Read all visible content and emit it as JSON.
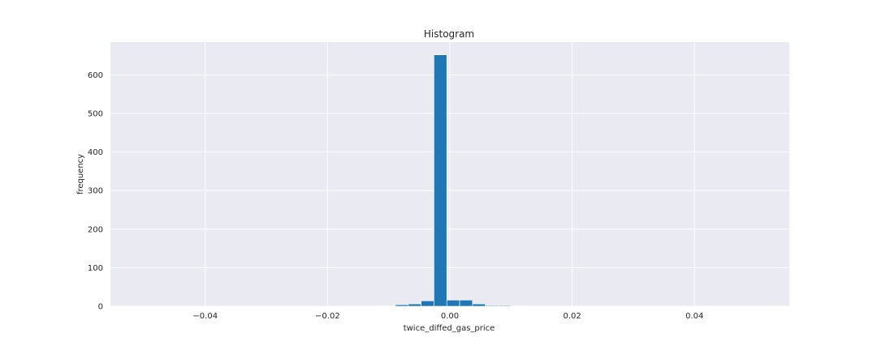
{
  "chart_data": {
    "type": "bar",
    "title": "Histogram",
    "xlabel": "twice_diffed_gas_price",
    "ylabel": "frequency",
    "xlim": [
      -0.0555,
      0.0555
    ],
    "ylim": [
      0,
      685
    ],
    "grid": true,
    "x_ticks": [
      -0.04,
      -0.02,
      0.0,
      0.02,
      0.04
    ],
    "x_tick_labels": [
      "−0.04",
      "−0.02",
      "0.00",
      "0.02",
      "0.04"
    ],
    "y_ticks": [
      0,
      100,
      200,
      300,
      400,
      500,
      600
    ],
    "y_tick_labels": [
      "0",
      "100",
      "200",
      "300",
      "400",
      "500",
      "600"
    ],
    "bins": [
      {
        "x0": -0.053,
        "x1": -0.0509,
        "count": 0.4
      },
      {
        "x0": -0.0509,
        "x1": -0.0488,
        "count": 0.4
      },
      {
        "x0": -0.0488,
        "x1": -0.0467,
        "count": 0.4
      },
      {
        "x0": -0.0467,
        "x1": -0.0446,
        "count": 0.4
      },
      {
        "x0": -0.0446,
        "x1": -0.0425,
        "count": 0.4
      },
      {
        "x0": -0.0425,
        "x1": -0.0404,
        "count": 0.4
      },
      {
        "x0": -0.0404,
        "x1": -0.0383,
        "count": 0.4
      },
      {
        "x0": -0.0383,
        "x1": -0.0362,
        "count": 0.4
      },
      {
        "x0": -0.0362,
        "x1": -0.0341,
        "count": 0.4
      },
      {
        "x0": -0.0341,
        "x1": -0.032,
        "count": 0.4
      },
      {
        "x0": -0.032,
        "x1": -0.0299,
        "count": 0.4
      },
      {
        "x0": -0.0299,
        "x1": -0.0278,
        "count": 0.4
      },
      {
        "x0": -0.0278,
        "x1": -0.0257,
        "count": 0.4
      },
      {
        "x0": -0.0257,
        "x1": -0.0236,
        "count": 0.4
      },
      {
        "x0": -0.0236,
        "x1": -0.0215,
        "count": 0.4
      },
      {
        "x0": -0.0215,
        "x1": -0.0194,
        "count": 0.4
      },
      {
        "x0": -0.0194,
        "x1": -0.0173,
        "count": 0.4
      },
      {
        "x0": -0.0173,
        "x1": -0.0152,
        "count": 0.4
      },
      {
        "x0": -0.0152,
        "x1": -0.0131,
        "count": 0.4
      },
      {
        "x0": -0.0131,
        "x1": -0.011,
        "count": 0.6
      },
      {
        "x0": -0.011,
        "x1": -0.0089,
        "count": 1
      },
      {
        "x0": -0.0089,
        "x1": -0.0068,
        "count": 4
      },
      {
        "x0": -0.0068,
        "x1": -0.0047,
        "count": 6
      },
      {
        "x0": -0.0047,
        "x1": -0.0026,
        "count": 14
      },
      {
        "x0": -0.0026,
        "x1": -0.0005,
        "count": 652
      },
      {
        "x0": -0.0005,
        "x1": 0.0016,
        "count": 16
      },
      {
        "x0": 0.0016,
        "x1": 0.0037,
        "count": 16
      },
      {
        "x0": 0.0037,
        "x1": 0.0058,
        "count": 6
      },
      {
        "x0": 0.0058,
        "x1": 0.0079,
        "count": 2
      },
      {
        "x0": 0.0079,
        "x1": 0.01,
        "count": 2
      },
      {
        "x0": 0.01,
        "x1": 0.0121,
        "count": 1
      },
      {
        "x0": 0.0121,
        "x1": 0.0142,
        "count": 0.5
      },
      {
        "x0": 0.0142,
        "x1": 0.0163,
        "count": 0.4
      },
      {
        "x0": 0.0163,
        "x1": 0.0184,
        "count": 0.4
      },
      {
        "x0": 0.0184,
        "x1": 0.0205,
        "count": 0.4
      },
      {
        "x0": 0.0205,
        "x1": 0.0226,
        "count": 0.4
      },
      {
        "x0": 0.0226,
        "x1": 0.0247,
        "count": 0.4
      },
      {
        "x0": 0.0247,
        "x1": 0.0268,
        "count": 0.4
      },
      {
        "x0": 0.0268,
        "x1": 0.0289,
        "count": 0.4
      },
      {
        "x0": 0.0289,
        "x1": 0.031,
        "count": 0.4
      },
      {
        "x0": 0.031,
        "x1": 0.0331,
        "count": 0.4
      },
      {
        "x0": 0.0331,
        "x1": 0.0352,
        "count": 0.4
      },
      {
        "x0": 0.0352,
        "x1": 0.0373,
        "count": 0.4
      },
      {
        "x0": 0.0373,
        "x1": 0.0394,
        "count": 0.4
      },
      {
        "x0": 0.0394,
        "x1": 0.0415,
        "count": 0.4
      },
      {
        "x0": 0.0415,
        "x1": 0.0436,
        "count": 0.4
      },
      {
        "x0": 0.0436,
        "x1": 0.0457,
        "count": 0.4
      },
      {
        "x0": 0.0457,
        "x1": 0.0478,
        "count": 0.4
      },
      {
        "x0": 0.0478,
        "x1": 0.0499,
        "count": 0.4
      },
      {
        "x0": 0.0499,
        "x1": 0.052,
        "count": 0.4
      }
    ],
    "colors": {
      "plot_background": "#eaeaf2",
      "bar_fill": "#1f77b4",
      "bar_edge": "#ffffff",
      "grid": "#ffffff",
      "text": "#262626"
    }
  }
}
